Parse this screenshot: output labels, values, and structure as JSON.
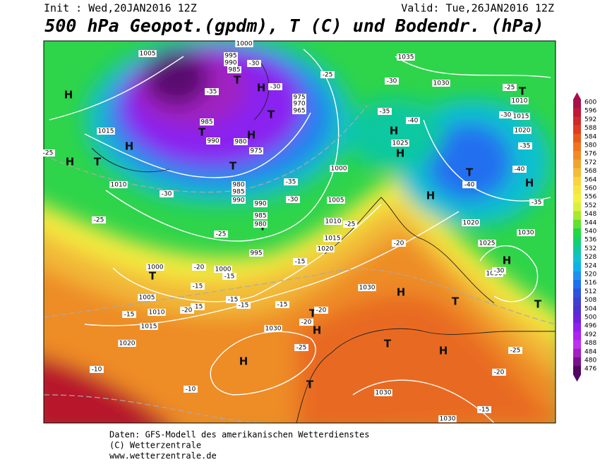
{
  "header": {
    "init": "Init : Wed,20JAN2016 12Z",
    "valid": "Valid: Tue,26JAN2016 12Z",
    "title": "500 hPa Geopot.(gpdm), T (C) und Bodendr. (hPa)"
  },
  "colorbar": {
    "labels": [
      600,
      596,
      592,
      588,
      584,
      580,
      576,
      572,
      568,
      564,
      560,
      556,
      552,
      548,
      544,
      540,
      536,
      532,
      528,
      524,
      520,
      516,
      512,
      508,
      504,
      500,
      496,
      492,
      488,
      484,
      480,
      476
    ],
    "colors": [
      "#a8104a",
      "#c01838",
      "#d02a2a",
      "#e03c20",
      "#e85a1a",
      "#f07420",
      "#f08c28",
      "#f0a430",
      "#f4bc38",
      "#f8d440",
      "#f8e440",
      "#f4f040",
      "#d8f040",
      "#a8e830",
      "#60e030",
      "#20d840",
      "#10d070",
      "#10c8a0",
      "#10c0d0",
      "#10b0f0",
      "#2090f0",
      "#2070f0",
      "#3050e0",
      "#4040d0",
      "#5030d0",
      "#7020e0",
      "#9020f0",
      "#b020f0",
      "#c030f0",
      "#a020c0",
      "#7a1090",
      "#500860"
    ]
  },
  "highs_lows": [
    "H",
    "H",
    "H",
    "T",
    "T",
    "H",
    "T",
    "T",
    "T",
    "H",
    "T",
    "T",
    "T",
    "H",
    "H",
    "T",
    "H",
    "H",
    "T",
    "H",
    "H",
    "T",
    "T",
    "T",
    "H",
    "T",
    "H",
    "H",
    "T"
  ],
  "pressure_labels": [
    "1005",
    "995",
    "990",
    "985",
    "1000",
    "1035",
    "1030",
    "1010",
    "1015",
    "1020",
    "1015",
    "985",
    "990",
    "980",
    "975",
    "1010",
    "980",
    "985",
    "990",
    "990",
    "985",
    "980",
    "995",
    "1000",
    "1005",
    "1010",
    "1015",
    "1020",
    "1000",
    "1000",
    "1005",
    "1010",
    "1015",
    "1020",
    "1030",
    "1030",
    "1030",
    "1030",
    "1020",
    "1025",
    "1030",
    "1030",
    "1025",
    "975",
    "970",
    "965"
  ],
  "temperature_labels": [
    "-30",
    "-35",
    "-30",
    "-25",
    "-30",
    "-25",
    "-35",
    "-40",
    "-30",
    "-35",
    "-40",
    "-40",
    "-35",
    "-25",
    "-30",
    "-25",
    "-25",
    "-35",
    "-30",
    "-25",
    "-20",
    "-15",
    "-20",
    "-15",
    "-15",
    "-15",
    "-15",
    "-15",
    "-15",
    "-20",
    "-15",
    "-20",
    "-20",
    "-25",
    "-30",
    "-25",
    "-20",
    "-15",
    "-10",
    "-10"
  ],
  "footer": [
    "Daten: GFS-Modell des amerikanischen Wetterdienstes",
    "(C) Wetterzentrale",
    "www.wetterzentrale.de"
  ]
}
